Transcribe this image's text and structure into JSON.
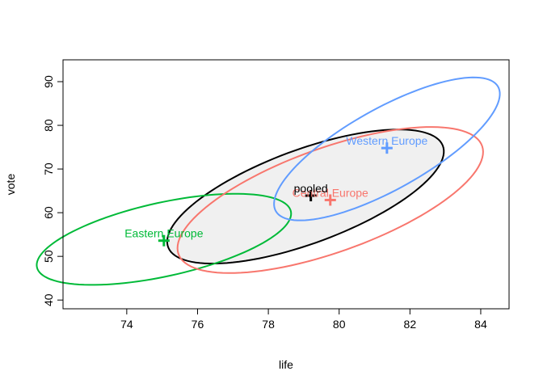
{
  "chart_data": {
    "type": "scatter",
    "xlabel": "life",
    "ylabel": "vote",
    "xlim": [
      72.2,
      84.8
    ],
    "ylim": [
      38,
      95
    ],
    "x_ticks": [
      74,
      76,
      78,
      80,
      82,
      84
    ],
    "y_ticks": [
      40,
      50,
      60,
      70,
      80,
      90
    ],
    "box": true,
    "grid": false,
    "series": [
      {
        "name": "Eastern Europe",
        "color": "#00BA38",
        "center": {
          "x": 75.05,
          "y": 53.6
        },
        "ellipse": {
          "cx": 75.05,
          "cy": 53.9,
          "a_x": 3.35,
          "a_y": 8.6,
          "b_x": 1.3,
          "b_y": -5.9
        },
        "filled": false
      },
      {
        "name": "Central Europe",
        "color": "#F8766D",
        "center": {
          "x": 79.75,
          "y": 62.9
        },
        "ellipse": {
          "cx": 79.75,
          "cy": 62.9,
          "a_x": 4.1,
          "a_y": 14.4,
          "b_x": 1.35,
          "b_y": -8.5
        },
        "filled": false
      },
      {
        "name": "Western Europe",
        "color": "#619CFF",
        "center": {
          "x": 81.35,
          "y": 74.8
        },
        "ellipse": {
          "cx": 81.35,
          "cy": 74.6,
          "a_x": 3.1,
          "a_y": 14.7,
          "b_x": 0.75,
          "b_y": -7.2
        },
        "filled": false
      },
      {
        "name": "pooled",
        "color": "#000000",
        "center": {
          "x": 79.2,
          "y": 63.9
        },
        "ellipse": {
          "cx": 79.05,
          "cy": 63.7,
          "a_x": 3.75,
          "a_y": 13.1,
          "b_x": 1.1,
          "b_y": -8.0
        },
        "filled": true,
        "fill_color": "#F0F0F0"
      }
    ]
  }
}
